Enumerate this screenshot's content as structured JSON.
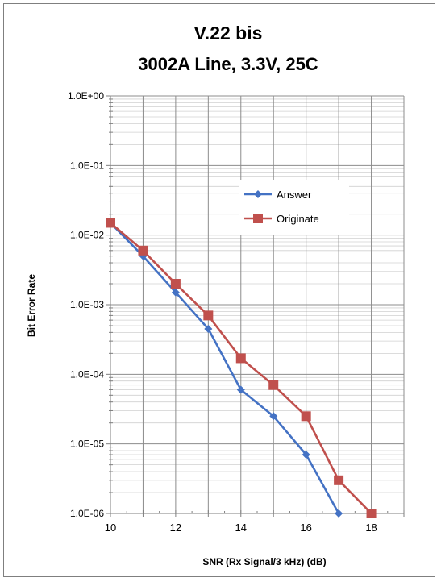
{
  "chart_data": {
    "type": "line",
    "title": "V.22 bis",
    "subtitle": "3002A Line, 3.3V, 25C",
    "xlabel": "SNR (Rx Signal/3 kHz) (dB)",
    "ylabel": "Bit Error Rate",
    "xlim": [
      10,
      19
    ],
    "ylim": [
      1e-06,
      1
    ],
    "y_scale": "log",
    "x_ticks": [
      10,
      12,
      14,
      16,
      18
    ],
    "x_tick_labels": [
      "10",
      "12",
      "14",
      "16",
      "18"
    ],
    "y_ticks": [
      1e-06,
      1e-05,
      0.0001,
      0.001,
      0.01,
      0.1,
      1
    ],
    "y_tick_labels": [
      "1.0E-06",
      "1.0E-05",
      "1.0E-04",
      "1.0E-03",
      "1.0E-02",
      "1.0E-01",
      "1.0E+00"
    ],
    "grid": true,
    "legend_position": "upper-right",
    "series": [
      {
        "name": "Answer",
        "color": "#4472C4",
        "marker": "diamond",
        "x": [
          10,
          11,
          12,
          13,
          14,
          15,
          16,
          17
        ],
        "y": [
          0.015,
          0.005,
          0.0015,
          0.00045,
          6e-05,
          2.5e-05,
          7e-06,
          1e-06
        ]
      },
      {
        "name": "Originate",
        "color": "#C0504D",
        "marker": "square",
        "x": [
          10,
          11,
          12,
          13,
          14,
          15,
          16,
          17,
          18
        ],
        "y": [
          0.015,
          0.006,
          0.002,
          0.0007,
          0.00017,
          7e-05,
          2.5e-05,
          3e-06,
          1e-06
        ]
      }
    ]
  }
}
